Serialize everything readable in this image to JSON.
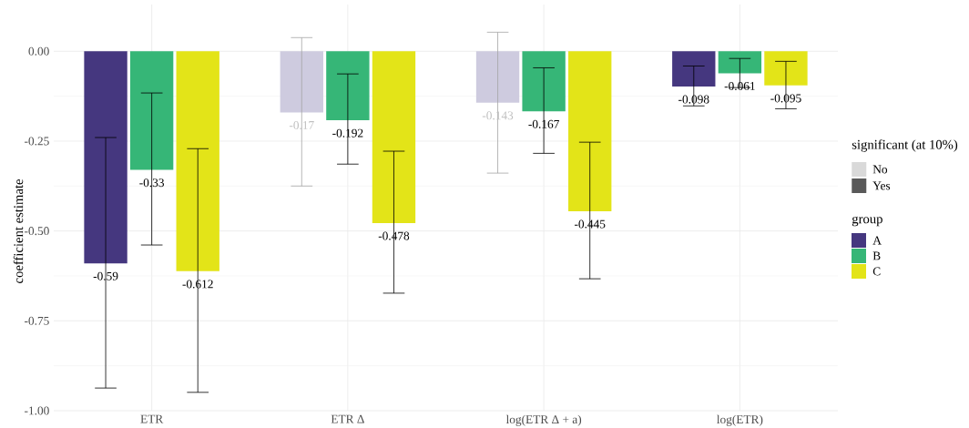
{
  "chart_data": {
    "type": "bar",
    "ylabel": "coefficient estimate",
    "legend_title": "group",
    "legend": "right",
    "grid": true,
    "data_labels": true,
    "categories": [
      "ETR",
      "ETR Δ",
      "log(ETR Δ + a)",
      "log(ETR)"
    ],
    "ylim": [
      -1.0,
      0.13
    ],
    "yticks": [
      {
        "value": -1.0,
        "label": "-1.00"
      },
      {
        "value": -0.75,
        "label": "-0.75"
      },
      {
        "value": -0.5,
        "label": "-0.50"
      },
      {
        "value": -0.25,
        "label": "-0.25"
      },
      {
        "value": 0,
        "label": "0.00"
      }
    ],
    "series": [
      {
        "name": "A",
        "color": "#45377f",
        "colors": [
          "#45377f",
          "#cecbdf",
          "#cecbdf",
          "#45377f"
        ],
        "values": [
          -0.59,
          -0.17,
          -0.143,
          -0.098
        ],
        "errors": [
          [
            -0.937,
            -0.24
          ],
          [
            -0.375,
            0.038
          ],
          [
            -0.339,
            0.053
          ],
          [
            -0.152,
            -0.041
          ]
        ]
      },
      {
        "name": "B",
        "color": "#36b677",
        "values": [
          -0.33,
          -0.192,
          -0.167,
          -0.061
        ],
        "errors": [
          [
            -0.539,
            -0.116
          ],
          [
            -0.314,
            -0.063
          ],
          [
            -0.284,
            -0.046
          ],
          [
            -0.101,
            -0.02
          ]
        ]
      },
      {
        "name": "C",
        "color": "#e3e418",
        "values": [
          -0.612,
          -0.478,
          -0.445,
          -0.095
        ],
        "errors": [
          [
            -0.949,
            -0.271
          ],
          [
            -0.673,
            -0.278
          ],
          [
            -0.633,
            -0.253
          ],
          [
            -0.16,
            -0.028
          ]
        ]
      }
    ],
    "annotations": [
      "significant (at 10%)",
      "No",
      "Yes"
    ]
  }
}
